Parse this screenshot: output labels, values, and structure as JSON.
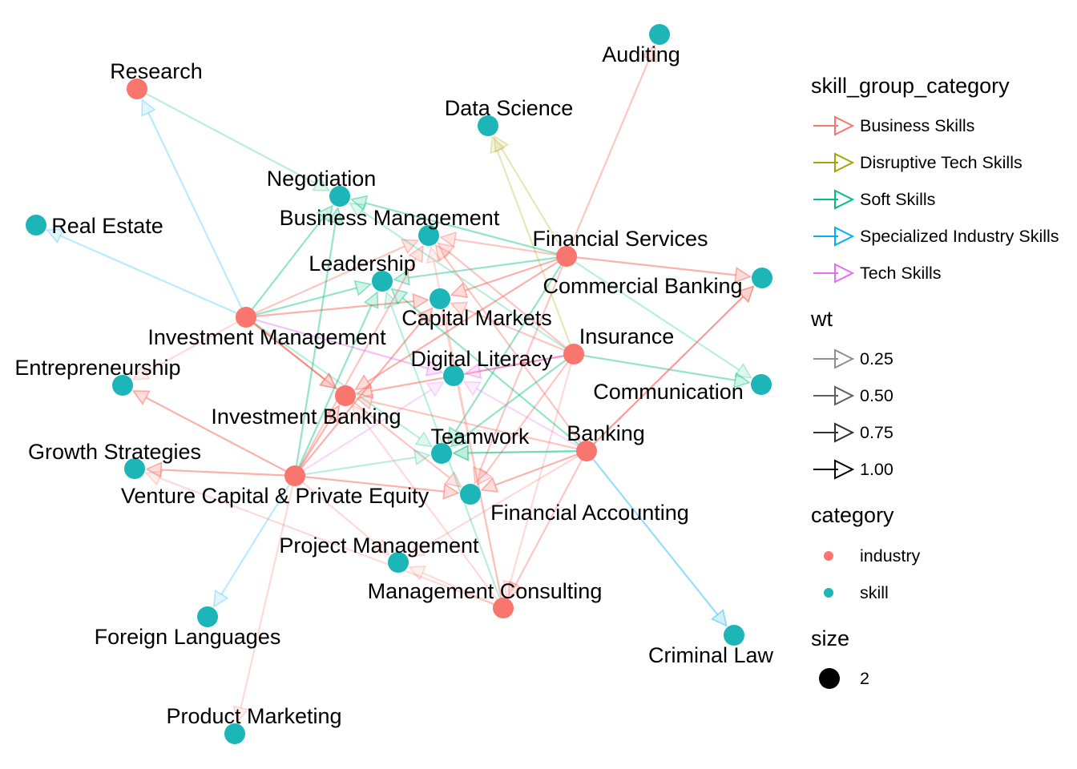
{
  "colors": {
    "industry": "#F8766D",
    "skill": "#1CB5B8",
    "Business Skills": "#F8766D",
    "Disruptive Tech Skills": "#A3A500",
    "Soft Skills": "#00BF7D",
    "Specialized Industry Skills": "#00B0F6",
    "Tech Skills": "#E76BF3"
  },
  "nodes": [
    {
      "id": "Research",
      "category": "industry"
    },
    {
      "id": "Auditing",
      "category": "skill"
    },
    {
      "id": "Data Science",
      "category": "skill"
    },
    {
      "id": "Negotiation",
      "category": "skill"
    },
    {
      "id": "Real Estate",
      "category": "skill"
    },
    {
      "id": "Business Management",
      "category": "skill"
    },
    {
      "id": "Financial Services",
      "category": "industry"
    },
    {
      "id": "Leadership",
      "category": "skill"
    },
    {
      "id": "Commercial Banking",
      "category": "skill"
    },
    {
      "id": "Capital Markets",
      "category": "skill"
    },
    {
      "id": "Investment Management",
      "category": "industry"
    },
    {
      "id": "Insurance",
      "category": "industry"
    },
    {
      "id": "Digital Literacy",
      "category": "skill"
    },
    {
      "id": "Entrepreneurship",
      "category": "skill"
    },
    {
      "id": "Communication",
      "category": "skill"
    },
    {
      "id": "Investment Banking",
      "category": "industry"
    },
    {
      "id": "Teamwork",
      "category": "skill"
    },
    {
      "id": "Banking",
      "category": "industry"
    },
    {
      "id": "Growth Strategies",
      "category": "skill"
    },
    {
      "id": "Venture Capital & Private Equity",
      "category": "industry"
    },
    {
      "id": "Financial Accounting",
      "category": "skill"
    },
    {
      "id": "Project Management",
      "category": "skill"
    },
    {
      "id": "Management Consulting",
      "category": "industry"
    },
    {
      "id": "Foreign Languages",
      "category": "skill"
    },
    {
      "id": "Criminal Law",
      "category": "skill"
    },
    {
      "id": "Product Marketing",
      "category": "skill"
    }
  ],
  "edges": [
    {
      "from": "Investment Management",
      "to": "Research",
      "group": "Specialized Industry Skills",
      "wt": 0.25
    },
    {
      "from": "Investment Management",
      "to": "Real Estate",
      "group": "Specialized Industry Skills",
      "wt": 0.25
    },
    {
      "from": "Investment Management",
      "to": "Business Management",
      "group": "Business Skills",
      "wt": 0.5
    },
    {
      "from": "Investment Management",
      "to": "Capital Markets",
      "group": "Business Skills",
      "wt": 0.75
    },
    {
      "from": "Investment Management",
      "to": "Investment Banking",
      "group": "Business Skills",
      "wt": 1.0
    },
    {
      "from": "Investment Management",
      "to": "Negotiation",
      "group": "Soft Skills",
      "wt": 0.5
    },
    {
      "from": "Investment Management",
      "to": "Leadership",
      "group": "Soft Skills",
      "wt": 0.5
    },
    {
      "from": "Investment Management",
      "to": "Digital Literacy",
      "group": "Tech Skills",
      "wt": 0.5
    },
    {
      "from": "Investment Management",
      "to": "Entrepreneurship",
      "group": "Business Skills",
      "wt": 0.25
    },
    {
      "from": "Investment Management",
      "to": "Teamwork",
      "group": "Soft Skills",
      "wt": 0.25
    },
    {
      "from": "Investment Management",
      "to": "Financial Accounting",
      "group": "Business Skills",
      "wt": 0.5
    },
    {
      "from": "Financial Services",
      "to": "Auditing",
      "group": "Business Skills",
      "wt": 0.5
    },
    {
      "from": "Financial Services",
      "to": "Data Science",
      "group": "Disruptive Tech Skills",
      "wt": 0.25
    },
    {
      "from": "Financial Services",
      "to": "Commercial Banking",
      "group": "Business Skills",
      "wt": 0.75
    },
    {
      "from": "Financial Services",
      "to": "Business Management",
      "group": "Business Skills",
      "wt": 0.5
    },
    {
      "from": "Financial Services",
      "to": "Capital Markets",
      "group": "Business Skills",
      "wt": 0.75
    },
    {
      "from": "Financial Services",
      "to": "Investment Banking",
      "group": "Business Skills",
      "wt": 0.75
    },
    {
      "from": "Financial Services",
      "to": "Leadership",
      "group": "Soft Skills",
      "wt": 0.5
    },
    {
      "from": "Financial Services",
      "to": "Negotiation",
      "group": "Soft Skills",
      "wt": 0.5
    },
    {
      "from": "Financial Services",
      "to": "Communication",
      "group": "Soft Skills",
      "wt": 0.25
    },
    {
      "from": "Financial Services",
      "to": "Teamwork",
      "group": "Soft Skills",
      "wt": 0.5
    },
    {
      "from": "Financial Services",
      "to": "Financial Accounting",
      "group": "Business Skills",
      "wt": 0.5
    },
    {
      "from": "Insurance",
      "to": "Data Science",
      "group": "Disruptive Tech Skills",
      "wt": 0.25
    },
    {
      "from": "Insurance",
      "to": "Business Management",
      "group": "Business Skills",
      "wt": 0.5
    },
    {
      "from": "Insurance",
      "to": "Capital Markets",
      "group": "Business Skills",
      "wt": 0.5
    },
    {
      "from": "Insurance",
      "to": "Investment Banking",
      "group": "Business Skills",
      "wt": 0.75
    },
    {
      "from": "Insurance",
      "to": "Communication",
      "group": "Soft Skills",
      "wt": 0.5
    },
    {
      "from": "Insurance",
      "to": "Digital Literacy",
      "group": "Tech Skills",
      "wt": 0.5
    },
    {
      "from": "Insurance",
      "to": "Teamwork",
      "group": "Soft Skills",
      "wt": 0.5
    },
    {
      "from": "Insurance",
      "to": "Financial Accounting",
      "group": "Business Skills",
      "wt": 0.5
    },
    {
      "from": "Insurance",
      "to": "Negotiation",
      "group": "Soft Skills",
      "wt": 0.25
    },
    {
      "from": "Insurance",
      "to": "Management Consulting",
      "group": "Business Skills",
      "wt": 0.25
    },
    {
      "from": "Banking",
      "to": "Commercial Banking",
      "group": "Business Skills",
      "wt": 1.0
    },
    {
      "from": "Banking",
      "to": "Criminal Law",
      "group": "Specialized Industry Skills",
      "wt": 0.5
    },
    {
      "from": "Banking",
      "to": "Teamwork",
      "group": "Soft Skills",
      "wt": 0.75
    },
    {
      "from": "Banking",
      "to": "Financial Accounting",
      "group": "Business Skills",
      "wt": 0.75
    },
    {
      "from": "Banking",
      "to": "Business Management",
      "group": "Business Skills",
      "wt": 0.5
    },
    {
      "from": "Banking",
      "to": "Leadership",
      "group": "Soft Skills",
      "wt": 0.5
    },
    {
      "from": "Banking",
      "to": "Digital Literacy",
      "group": "Tech Skills",
      "wt": 0.25
    },
    {
      "from": "Banking",
      "to": "Project Management",
      "group": "Business Skills",
      "wt": 0.25
    },
    {
      "from": "Banking",
      "to": "Management Consulting",
      "group": "Business Skills",
      "wt": 0.5
    },
    {
      "from": "Banking",
      "to": "Investment Banking",
      "group": "Business Skills",
      "wt": 0.5
    },
    {
      "from": "Venture Capital & Private Equity",
      "to": "Entrepreneurship",
      "group": "Business Skills",
      "wt": 0.75
    },
    {
      "from": "Venture Capital & Private Equity",
      "to": "Growth Strategies",
      "group": "Business Skills",
      "wt": 0.75
    },
    {
      "from": "Venture Capital & Private Equity",
      "to": "Investment Banking",
      "group": "Business Skills",
      "wt": 0.75
    },
    {
      "from": "Venture Capital & Private Equity",
      "to": "Capital Markets",
      "group": "Business Skills",
      "wt": 0.75
    },
    {
      "from": "Venture Capital & Private Equity",
      "to": "Business Management",
      "group": "Business Skills",
      "wt": 0.5
    },
    {
      "from": "Venture Capital & Private Equity",
      "to": "Financial Accounting",
      "group": "Business Skills",
      "wt": 0.75
    },
    {
      "from": "Venture Capital & Private Equity",
      "to": "Negotiation",
      "group": "Soft Skills",
      "wt": 0.5
    },
    {
      "from": "Venture Capital & Private Equity",
      "to": "Leadership",
      "group": "Soft Skills",
      "wt": 0.5
    },
    {
      "from": "Venture Capital & Private Equity",
      "to": "Teamwork",
      "group": "Soft Skills",
      "wt": 0.25
    },
    {
      "from": "Venture Capital & Private Equity",
      "to": "Digital Literacy",
      "group": "Tech Skills",
      "wt": 0.25
    },
    {
      "from": "Venture Capital & Private Equity",
      "to": "Foreign Languages",
      "group": "Specialized Industry Skills",
      "wt": 0.25
    },
    {
      "from": "Venture Capital & Private Equity",
      "to": "Product Marketing",
      "group": "Business Skills",
      "wt": 0.25
    },
    {
      "from": "Venture Capital & Private Equity",
      "to": "Project Management",
      "group": "Business Skills",
      "wt": 0.25
    },
    {
      "from": "Management Consulting",
      "to": "Investment Banking",
      "group": "Business Skills",
      "wt": 0.25
    },
    {
      "from": "Management Consulting",
      "to": "Business Management",
      "group": "Business Skills",
      "wt": 0.25
    },
    {
      "from": "Management Consulting",
      "to": "Leadership",
      "group": "Soft Skills",
      "wt": 0.25
    },
    {
      "from": "Management Consulting",
      "to": "Growth Strategies",
      "group": "Business Skills",
      "wt": 0.25
    },
    {
      "from": "Management Consulting",
      "to": "Project Management",
      "group": "Business Skills",
      "wt": 0.25
    },
    {
      "from": "Management Consulting",
      "to": "Capital Markets",
      "group": "Business Skills",
      "wt": 0.25
    },
    {
      "from": "Research",
      "to": "Negotiation",
      "group": "Soft Skills",
      "wt": 0.25
    }
  ],
  "legend": {
    "group_title": "skill_group_category",
    "groups": [
      "Business Skills",
      "Disruptive Tech Skills",
      "Soft Skills",
      "Specialized Industry Skills",
      "Tech Skills"
    ],
    "wt_title": "wt",
    "wt_items": [
      {
        "label": "0.25",
        "value": 0.25
      },
      {
        "label": "0.50",
        "value": 0.5
      },
      {
        "label": "0.75",
        "value": 0.75
      },
      {
        "label": "1.00",
        "value": 1.0
      }
    ],
    "category_title": "category",
    "categories": [
      "industry",
      "skill"
    ],
    "size_title": "size",
    "size_items": [
      "2"
    ]
  }
}
